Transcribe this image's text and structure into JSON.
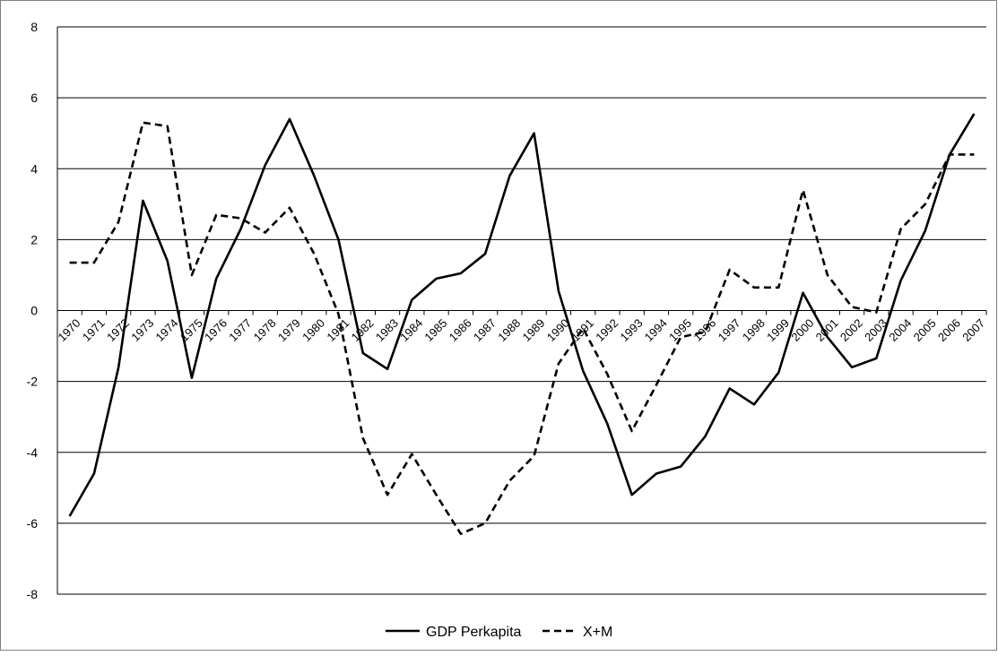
{
  "chart_data": {
    "type": "line",
    "title": "",
    "xlabel": "",
    "ylabel": "",
    "ylim": [
      -8,
      8
    ],
    "ytick_step": 2,
    "yticks": [
      "-8",
      "-6",
      "-4",
      "-2",
      "0",
      "2",
      "4",
      "6",
      "8"
    ],
    "grid": true,
    "legend_position": "bottom",
    "categories": [
      "1970",
      "1971",
      "1972",
      "1973",
      "1974",
      "1975",
      "1976",
      "1977",
      "1978",
      "1979",
      "1980",
      "1981",
      "1982",
      "1983",
      "1984",
      "1985",
      "1986",
      "1987",
      "1988",
      "1989",
      "1990",
      "1991",
      "1992",
      "1993",
      "1994",
      "1995",
      "1996",
      "1997",
      "1998",
      "1999",
      "2000",
      "2001",
      "2002",
      "2003",
      "2004",
      "2005",
      "2006",
      "2007"
    ],
    "series": [
      {
        "name": "GDP Perkapita",
        "style": "solid",
        "color": "#000000",
        "values": [
          -5.8,
          -4.6,
          -1.6,
          3.1,
          1.4,
          -1.9,
          0.9,
          2.3,
          4.1,
          5.4,
          3.8,
          2.0,
          -1.2,
          -1.65,
          0.3,
          0.9,
          1.05,
          1.6,
          3.8,
          5.0,
          0.55,
          -1.7,
          -3.2,
          -5.2,
          -4.6,
          -4.4,
          -3.55,
          -2.2,
          -2.65,
          -1.75,
          0.5,
          -0.75,
          -1.6,
          -1.35,
          0.85,
          2.25,
          4.4,
          5.55
        ]
      },
      {
        "name": "X+M",
        "style": "dashed",
        "color": "#000000",
        "values": [
          1.35,
          1.35,
          2.5,
          5.3,
          5.2,
          1.0,
          2.7,
          2.6,
          2.2,
          2.9,
          1.6,
          -0.1,
          -3.6,
          -5.2,
          -4.05,
          -5.2,
          -6.3,
          -6.0,
          -4.8,
          -4.1,
          -1.5,
          -0.5,
          -1.8,
          -3.4,
          -2.1,
          -0.75,
          -0.6,
          1.15,
          0.65,
          0.65,
          3.4,
          1.0,
          0.1,
          -0.05,
          2.3,
          3.0,
          4.4,
          4.4
        ]
      }
    ]
  }
}
